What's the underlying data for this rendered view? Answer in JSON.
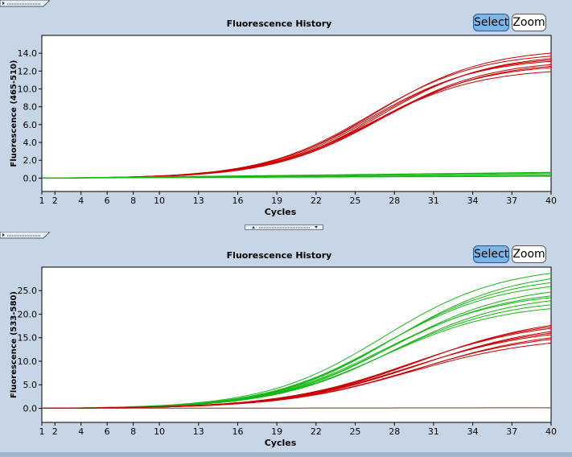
{
  "charts": [
    {
      "title": "Fluorescence History",
      "select_label": "Select",
      "zoom_label": "Zoom"
    },
    {
      "title": "Fluorescence History",
      "select_label": "Select",
      "zoom_label": "Zoom"
    }
  ],
  "chart_data": [
    {
      "type": "line",
      "title": "Fluorescence History",
      "xlabel": "Cycles",
      "ylabel": "Fluorescence (465-510)",
      "xlim": [
        1,
        40
      ],
      "ylim": [
        -1.5,
        16.0
      ],
      "x_ticks": [
        1,
        2,
        4,
        6,
        8,
        10,
        13,
        16,
        19,
        22,
        25,
        28,
        31,
        34,
        37,
        40
      ],
      "y_ticks": [
        0.0,
        2.0,
        4.0,
        6.0,
        8.0,
        10.0,
        12.0,
        14.0
      ],
      "y_tick_labels": [
        "0.0",
        "2.0",
        "4.0",
        "6.0",
        "8.0",
        "10.0",
        "12.0",
        "14.0"
      ],
      "grid": false,
      "groups": [
        {
          "color": "#cc0000",
          "curve": "sigmoid",
          "count": 9,
          "midpoint": 26.5,
          "slope": 0.24,
          "plateaus": [
            12.4,
            12.9,
            13.3,
            13.6,
            13.8,
            14.0,
            14.2,
            14.6,
            13.1
          ],
          "baseline": 0.0
        },
        {
          "color": "#14b814",
          "curve": "linear",
          "count": 6,
          "end_values": [
            0.2,
            0.3,
            0.35,
            0.5,
            0.6,
            0.65
          ],
          "baseline": 0.0
        }
      ]
    },
    {
      "type": "line",
      "title": "Fluorescence History",
      "xlabel": "Cycles",
      "ylabel": "Fluorescence (533-580)",
      "xlim": [
        1,
        40
      ],
      "ylim": [
        -3.0,
        30.0
      ],
      "x_ticks": [
        1,
        2,
        4,
        6,
        8,
        10,
        13,
        16,
        19,
        22,
        25,
        28,
        31,
        34,
        37,
        40
      ],
      "y_ticks": [
        0.0,
        5.0,
        10.0,
        15.0,
        20.0,
        25.0
      ],
      "y_tick_labels": [
        "0.0",
        "5.0",
        "10.0",
        "15.0",
        "20.0",
        "25.0"
      ],
      "grid": false,
      "groups": [
        {
          "color": "#14b814",
          "curve": "sigmoid",
          "count": 10,
          "midpoint": 27.5,
          "slope": 0.22,
          "plateaus": [
            22.5,
            23.5,
            24.5,
            25.0,
            25.5,
            26.5,
            27.5,
            28.5,
            29.5,
            30.5
          ],
          "baseline": 0.0
        },
        {
          "color": "#cc0000",
          "curve": "sigmoid",
          "count": 9,
          "midpoint": 29.5,
          "slope": 0.2,
          "plateaus": [
            15.5,
            16.5,
            17.0,
            17.5,
            18.0,
            18.5,
            19.0,
            19.5,
            20.0
          ],
          "baseline": 0.0
        },
        {
          "color": "#6b3a1a",
          "curve": "linear",
          "count": 1,
          "end_values": [
            0.1
          ],
          "baseline": 0.0
        }
      ]
    }
  ]
}
